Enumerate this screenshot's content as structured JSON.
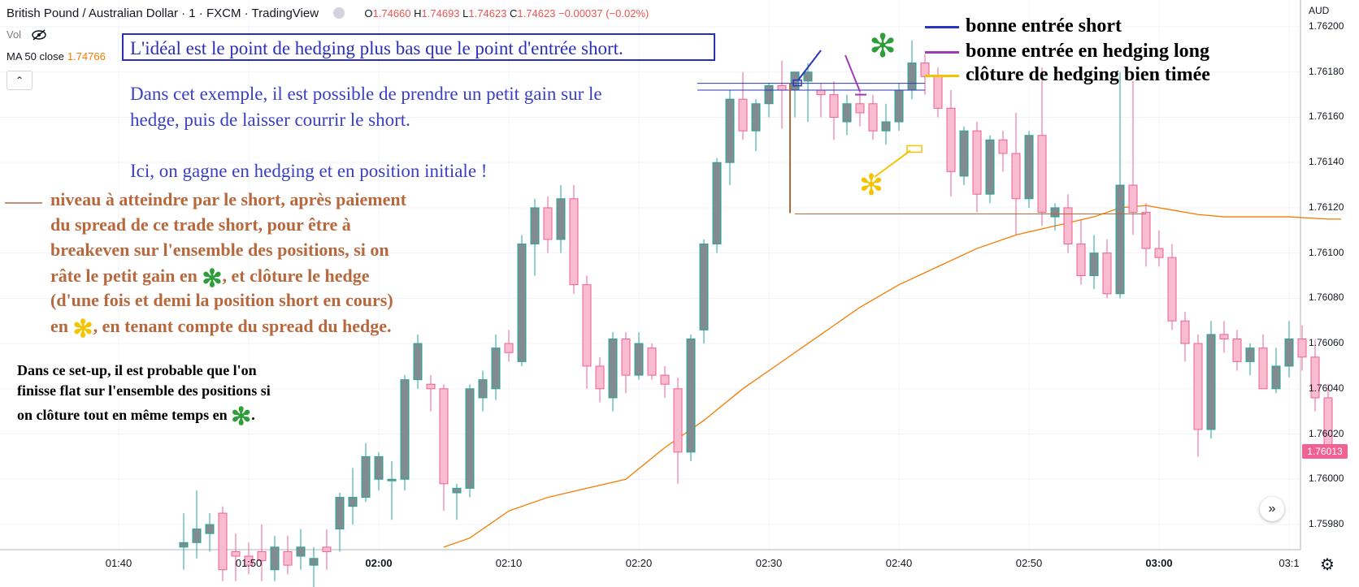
{
  "header": {
    "symbol": "British Pound / Australian Dollar · 1 · FXCM · TradingView",
    "o_label": "O",
    "o": "1.74660",
    "h_label": "H",
    "h": "1.74693",
    "l_label": "L",
    "l": "1.74623",
    "c_label": "C",
    "c": "1.74623",
    "change": "−0.00037 (−0.02%)"
  },
  "indicators": {
    "vol_label": "Vol",
    "ma_label": "MA 50 close",
    "ma_value": "1.74766",
    "collapse_icon": "chevron-up-icon",
    "collapse_glyph": "⌃"
  },
  "annotations": {
    "box_text": "L'idéal est le point de hedging plus bas que le point d'entrée short.",
    "blue_lines": [
      "Dans cet exemple, il est possible de prendre un petit gain sur le",
      "hedge, puis de laisser courrir le short.",
      "Ici, on gagne en hedging et en position initiale !"
    ],
    "brown_lines": [
      "niveau à atteindre par le short, après paiement",
      "du spread de ce trade short, pour être à",
      "breakeven sur l'ensemble des positions, si on",
      "râte le petit gain en ",
      ", et clôture le hedge",
      "(d'une fois et demi la position short en cours)",
      "en ",
      ", en tenant compte du spread du hedge."
    ],
    "black_lines": [
      "Dans ce set-up, il est probable que l'on",
      "finisse flat sur l'ensemble des positions si",
      "on clôture tout en même temps en ",
      "."
    ],
    "asterisk": "✻",
    "colors": {
      "box": "#2b2fb8",
      "blue_text": "#3b3fc2",
      "brown": "#b7683c",
      "green_star": "#2e9e3a",
      "yellow_star": "#f5c400"
    }
  },
  "legend": [
    {
      "label": "bonne entrée short",
      "color": "#2b35c0"
    },
    {
      "label": "bonne entrée en hedging long",
      "color": "#a03ab5"
    },
    {
      "label": "clôture de hedging bien timée",
      "color": "#f5c400"
    }
  ],
  "axis": {
    "currency": "AUD",
    "y_ticks": [
      "1.76200",
      "1.76180",
      "1.76160",
      "1.76140",
      "1.76120",
      "1.76100",
      "1.76080",
      "1.76060",
      "1.76040",
      "1.76020",
      "1.76000",
      "1.75980"
    ],
    "x_ticks": [
      {
        "label": "01:40",
        "bold": false
      },
      {
        "label": "01:50",
        "bold": false
      },
      {
        "label": "02:00",
        "bold": true
      },
      {
        "label": "02:10",
        "bold": false
      },
      {
        "label": "02:20",
        "bold": false
      },
      {
        "label": "02:30",
        "bold": false
      },
      {
        "label": "02:40",
        "bold": false
      },
      {
        "label": "02:50",
        "bold": false
      },
      {
        "label": "03:00",
        "bold": true
      },
      {
        "label": "03:1",
        "bold": false
      }
    ],
    "last_price": "1.76013",
    "scroll_icon": "double-chevron-right-icon",
    "scroll_glyph": "»",
    "settings_icon": "gear-icon",
    "settings_glyph": "⚙"
  },
  "chart_data": {
    "type": "candlestick",
    "ylim": [
      1.7597,
      1.7621
    ],
    "colors": {
      "up": "#808c90",
      "up_border": "#26a69a",
      "down": "#f8bbd0",
      "down_border": "#f06292",
      "ma": "#f57c00"
    },
    "candles": [
      {
        "o": 1.7597,
        "h": 1.75985,
        "l": 1.7596,
        "c": 1.75972
      },
      {
        "o": 1.75972,
        "h": 1.75995,
        "l": 1.75965,
        "c": 1.75978
      },
      {
        "o": 1.75976,
        "h": 1.75985,
        "l": 1.75968,
        "c": 1.7598
      },
      {
        "o": 1.75985,
        "h": 1.75988,
        "l": 1.75955,
        "c": 1.7596
      },
      {
        "o": 1.75968,
        "h": 1.75976,
        "l": 1.75955,
        "c": 1.75966
      },
      {
        "o": 1.75966,
        "h": 1.75972,
        "l": 1.75958,
        "c": 1.75962
      },
      {
        "o": 1.75968,
        "h": 1.7598,
        "l": 1.75955,
        "c": 1.75964
      },
      {
        "o": 1.7596,
        "h": 1.75975,
        "l": 1.75955,
        "c": 1.7597
      },
      {
        "o": 1.75968,
        "h": 1.75975,
        "l": 1.75958,
        "c": 1.75962
      },
      {
        "o": 1.75966,
        "h": 1.75978,
        "l": 1.7596,
        "c": 1.7597
      },
      {
        "o": 1.75962,
        "h": 1.7597,
        "l": 1.7595,
        "c": 1.75965
      },
      {
        "o": 1.7597,
        "h": 1.75978,
        "l": 1.7596,
        "c": 1.75968
      },
      {
        "o": 1.75978,
        "h": 1.75994,
        "l": 1.75968,
        "c": 1.75992
      },
      {
        "o": 1.75988,
        "h": 1.76005,
        "l": 1.7598,
        "c": 1.75992
      },
      {
        "o": 1.75992,
        "h": 1.76016,
        "l": 1.7599,
        "c": 1.7601
      },
      {
        "o": 1.76,
        "h": 1.76012,
        "l": 1.75995,
        "c": 1.7601
      },
      {
        "o": 1.76,
        "h": 1.76008,
        "l": 1.75982,
        "c": 1.76
      },
      {
        "o": 1.76,
        "h": 1.76046,
        "l": 1.75995,
        "c": 1.76044
      },
      {
        "o": 1.76044,
        "h": 1.76064,
        "l": 1.7604,
        "c": 1.7606
      },
      {
        "o": 1.76042,
        "h": 1.76046,
        "l": 1.7603,
        "c": 1.7604
      },
      {
        "o": 1.7604,
        "h": 1.76042,
        "l": 1.75986,
        "c": 1.75998
      },
      {
        "o": 1.75994,
        "h": 1.75998,
        "l": 1.75982,
        "c": 1.75996
      },
      {
        "o": 1.75996,
        "h": 1.76042,
        "l": 1.75992,
        "c": 1.7604
      },
      {
        "o": 1.76036,
        "h": 1.76048,
        "l": 1.7603,
        "c": 1.76044
      },
      {
        "o": 1.7604,
        "h": 1.76064,
        "l": 1.76035,
        "c": 1.76058
      },
      {
        "o": 1.7606,
        "h": 1.76066,
        "l": 1.76052,
        "c": 1.76056
      },
      {
        "o": 1.76052,
        "h": 1.76108,
        "l": 1.7605,
        "c": 1.76104
      },
      {
        "o": 1.76104,
        "h": 1.76124,
        "l": 1.7609,
        "c": 1.7612
      },
      {
        "o": 1.7612,
        "h": 1.76125,
        "l": 1.761,
        "c": 1.76106
      },
      {
        "o": 1.76106,
        "h": 1.7613,
        "l": 1.761,
        "c": 1.76124
      },
      {
        "o": 1.76124,
        "h": 1.7613,
        "l": 1.76082,
        "c": 1.76086
      },
      {
        "o": 1.76086,
        "h": 1.7609,
        "l": 1.7604,
        "c": 1.7605
      },
      {
        "o": 1.7605,
        "h": 1.76054,
        "l": 1.76034,
        "c": 1.7604
      },
      {
        "o": 1.76036,
        "h": 1.76065,
        "l": 1.7603,
        "c": 1.76062
      },
      {
        "o": 1.76062,
        "h": 1.76065,
        "l": 1.76038,
        "c": 1.76046
      },
      {
        "o": 1.76046,
        "h": 1.76065,
        "l": 1.76044,
        "c": 1.7606
      },
      {
        "o": 1.76058,
        "h": 1.7606,
        "l": 1.76044,
        "c": 1.76046
      },
      {
        "o": 1.76046,
        "h": 1.7605,
        "l": 1.76036,
        "c": 1.76042
      },
      {
        "o": 1.7604,
        "h": 1.76045,
        "l": 1.75998,
        "c": 1.76012
      },
      {
        "o": 1.76012,
        "h": 1.76064,
        "l": 1.76008,
        "c": 1.76062
      },
      {
        "o": 1.76066,
        "h": 1.76106,
        "l": 1.7606,
        "c": 1.76104
      },
      {
        "o": 1.76104,
        "h": 1.76142,
        "l": 1.761,
        "c": 1.7614
      },
      {
        "o": 1.7614,
        "h": 1.76172,
        "l": 1.7613,
        "c": 1.76168
      },
      {
        "o": 1.76168,
        "h": 1.7618,
        "l": 1.7615,
        "c": 1.76154
      },
      {
        "o": 1.76154,
        "h": 1.76168,
        "l": 1.76145,
        "c": 1.76166
      },
      {
        "o": 1.76166,
        "h": 1.76175,
        "l": 1.7616,
        "c": 1.76174
      },
      {
        "o": 1.76174,
        "h": 1.76185,
        "l": 1.76155,
        "c": 1.76172
      },
      {
        "o": 1.76172,
        "h": 1.76178,
        "l": 1.7616,
        "c": 1.7618
      },
      {
        "o": 1.76176,
        "h": 1.76184,
        "l": 1.76158,
        "c": 1.7618
      },
      {
        "o": 1.76172,
        "h": 1.76175,
        "l": 1.7616,
        "c": 1.7617
      },
      {
        "o": 1.7617,
        "h": 1.76176,
        "l": 1.7615,
        "c": 1.7616
      },
      {
        "o": 1.76158,
        "h": 1.7617,
        "l": 1.76152,
        "c": 1.76166
      },
      {
        "o": 1.76166,
        "h": 1.76172,
        "l": 1.76156,
        "c": 1.76162
      },
      {
        "o": 1.76166,
        "h": 1.7617,
        "l": 1.7615,
        "c": 1.76154
      },
      {
        "o": 1.76154,
        "h": 1.76166,
        "l": 1.76148,
        "c": 1.76158
      },
      {
        "o": 1.76158,
        "h": 1.76175,
        "l": 1.76154,
        "c": 1.76172
      },
      {
        "o": 1.76172,
        "h": 1.76194,
        "l": 1.76168,
        "c": 1.76184
      },
      {
        "o": 1.76184,
        "h": 1.76188,
        "l": 1.7617,
        "c": 1.76178
      },
      {
        "o": 1.76178,
        "h": 1.76182,
        "l": 1.7616,
        "c": 1.76164
      },
      {
        "o": 1.76164,
        "h": 1.76172,
        "l": 1.76125,
        "c": 1.76136
      },
      {
        "o": 1.76134,
        "h": 1.76156,
        "l": 1.7613,
        "c": 1.76154
      },
      {
        "o": 1.76154,
        "h": 1.76158,
        "l": 1.76118,
        "c": 1.76126
      },
      {
        "o": 1.76126,
        "h": 1.76152,
        "l": 1.76122,
        "c": 1.7615
      },
      {
        "o": 1.7615,
        "h": 1.76154,
        "l": 1.76136,
        "c": 1.76144
      },
      {
        "o": 1.76144,
        "h": 1.76162,
        "l": 1.76108,
        "c": 1.76124
      },
      {
        "o": 1.76124,
        "h": 1.76154,
        "l": 1.7612,
        "c": 1.76152
      },
      {
        "o": 1.76152,
        "h": 1.76182,
        "l": 1.76112,
        "c": 1.76118
      },
      {
        "o": 1.76116,
        "h": 1.76122,
        "l": 1.7611,
        "c": 1.7612
      },
      {
        "o": 1.7612,
        "h": 1.76126,
        "l": 1.761,
        "c": 1.76104
      },
      {
        "o": 1.76104,
        "h": 1.76115,
        "l": 1.76086,
        "c": 1.7609
      },
      {
        "o": 1.7609,
        "h": 1.76108,
        "l": 1.76084,
        "c": 1.761
      },
      {
        "o": 1.761,
        "h": 1.76106,
        "l": 1.7608,
        "c": 1.76082
      },
      {
        "o": 1.76082,
        "h": 1.7618,
        "l": 1.7608,
        "c": 1.7613
      },
      {
        "o": 1.7613,
        "h": 1.76176,
        "l": 1.76108,
        "c": 1.76118
      },
      {
        "o": 1.76118,
        "h": 1.76122,
        "l": 1.76094,
        "c": 1.76102
      },
      {
        "o": 1.76102,
        "h": 1.7611,
        "l": 1.76094,
        "c": 1.76098
      },
      {
        "o": 1.76098,
        "h": 1.76104,
        "l": 1.76066,
        "c": 1.7607
      },
      {
        "o": 1.7607,
        "h": 1.76074,
        "l": 1.76052,
        "c": 1.7606
      },
      {
        "o": 1.7606,
        "h": 1.76064,
        "l": 1.7601,
        "c": 1.76022
      },
      {
        "o": 1.76022,
        "h": 1.7607,
        "l": 1.76018,
        "c": 1.76064
      },
      {
        "o": 1.76064,
        "h": 1.7607,
        "l": 1.76056,
        "c": 1.76062
      },
      {
        "o": 1.76062,
        "h": 1.76066,
        "l": 1.76048,
        "c": 1.76052
      },
      {
        "o": 1.76052,
        "h": 1.7606,
        "l": 1.76046,
        "c": 1.76058
      },
      {
        "o": 1.76058,
        "h": 1.76064,
        "l": 1.7604,
        "c": 1.7604
      },
      {
        "o": 1.7604,
        "h": 1.76058,
        "l": 1.76038,
        "c": 1.7605
      },
      {
        "o": 1.7605,
        "h": 1.7607,
        "l": 1.76045,
        "c": 1.76062
      },
      {
        "o": 1.76062,
        "h": 1.76068,
        "l": 1.76048,
        "c": 1.76054
      },
      {
        "o": 1.76054,
        "h": 1.76062,
        "l": 1.7603,
        "c": 1.76036
      },
      {
        "o": 1.76036,
        "h": 1.76042,
        "l": 1.7601,
        "c": 1.76013
      }
    ],
    "ma": [
      [
        20,
        1.7597
      ],
      [
        22,
        1.75974
      ],
      [
        25,
        1.75986
      ],
      [
        28,
        1.75992
      ],
      [
        31,
        1.75996
      ],
      [
        34,
        1.76
      ],
      [
        37,
        1.76014
      ],
      [
        40,
        1.76026
      ],
      [
        43,
        1.7604
      ],
      [
        46,
        1.76052
      ],
      [
        49,
        1.76064
      ],
      [
        52,
        1.76076
      ],
      [
        55,
        1.76086
      ],
      [
        58,
        1.76094
      ],
      [
        61,
        1.76102
      ],
      [
        64,
        1.76108
      ],
      [
        67,
        1.76112
      ],
      [
        70,
        1.76116
      ],
      [
        72,
        1.7612
      ],
      [
        74,
        1.76121
      ],
      [
        76,
        1.76119
      ],
      [
        78,
        1.76117
      ],
      [
        80,
        1.76116
      ],
      [
        82,
        1.76116
      ],
      [
        85,
        1.76116
      ],
      [
        88,
        1.76115
      ],
      [
        89,
        1.76115
      ]
    ],
    "entry_short_level": [
      1.76175,
      1.76172
    ],
    "hedge_long_level": 1.7617,
    "breakeven_level": 1.76118,
    "hedge_close_level": 1.76146
  }
}
